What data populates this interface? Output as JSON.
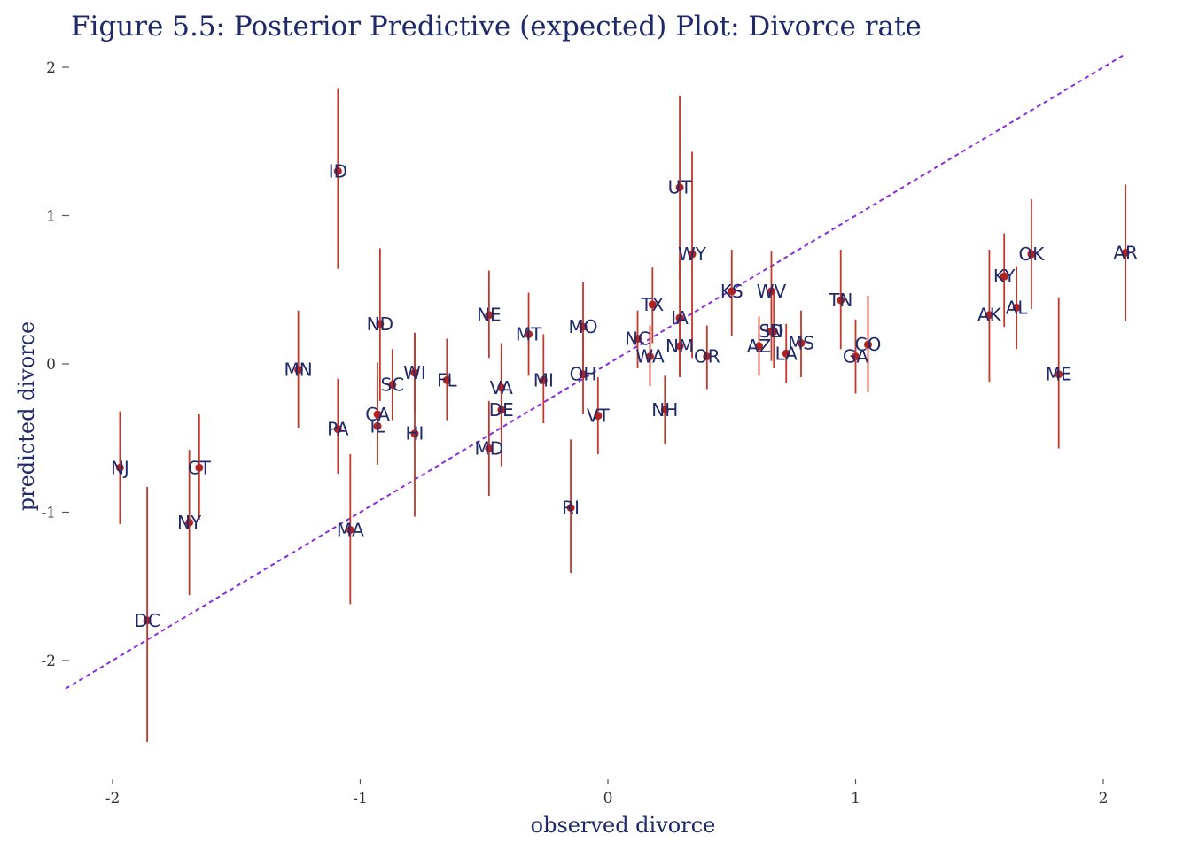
{
  "chart_data": {
    "type": "scatter",
    "title": "Figure 5.5: Posterior Predictive (expected) Plot: Divorce rate",
    "xlabel": "observed divorce",
    "ylabel": "predicted divorce",
    "xlim": [
      -2.2,
      2.15
    ],
    "ylim": [
      -2.7,
      2.15
    ],
    "x_ticks": [
      -2,
      -1,
      0,
      1,
      2
    ],
    "y_ticks": [
      -2,
      -1,
      0,
      1,
      2
    ],
    "x_tick_labels": [
      "-2",
      "-1",
      "0",
      "1",
      "2"
    ],
    "y_tick_labels": [
      "-2",
      "-1",
      "0",
      "1",
      "2"
    ],
    "grid": false,
    "reference_line": {
      "slope": 1,
      "intercept": 0,
      "style": "dashed",
      "color": "#8a2be2"
    },
    "colors": {
      "interval": "#c0392b",
      "point": "#b22222",
      "label": "#1f2a6b",
      "title": "#1f2a6b",
      "reference_line": "#8a2be2"
    },
    "points": [
      {
        "label": "AK",
        "x": 1.54,
        "y": 0.33,
        "lower": -0.12,
        "upper": 0.77
      },
      {
        "label": "AL",
        "x": 1.65,
        "y": 0.38,
        "lower": 0.1,
        "upper": 0.66
      },
      {
        "label": "AR",
        "x": 2.09,
        "y": 0.75,
        "lower": 0.29,
        "upper": 1.21
      },
      {
        "label": "AZ",
        "x": 0.61,
        "y": 0.12,
        "lower": -0.08,
        "upper": 0.32
      },
      {
        "label": "CA",
        "x": -0.93,
        "y": -0.34,
        "lower": -0.68,
        "upper": 0.01
      },
      {
        "label": "CO",
        "x": 1.05,
        "y": 0.13,
        "lower": -0.19,
        "upper": 0.46
      },
      {
        "label": "CT",
        "x": -1.65,
        "y": -0.7,
        "lower": -1.05,
        "upper": -0.34
      },
      {
        "label": "DC",
        "x": -1.86,
        "y": -1.73,
        "lower": -2.55,
        "upper": -0.83
      },
      {
        "label": "DE",
        "x": -0.43,
        "y": -0.31,
        "lower": -0.69,
        "upper": 0.07
      },
      {
        "label": "FL",
        "x": -0.65,
        "y": -0.11,
        "lower": -0.38,
        "upper": 0.17
      },
      {
        "label": "GA",
        "x": 1.0,
        "y": 0.05,
        "lower": -0.2,
        "upper": 0.3
      },
      {
        "label": "HI",
        "x": -0.78,
        "y": -0.47,
        "lower": -1.03,
        "upper": 0.21
      },
      {
        "label": "IA",
        "x": 0.29,
        "y": 0.31,
        "lower": -0.08,
        "upper": 0.7
      },
      {
        "label": "ID",
        "x": -1.09,
        "y": 1.3,
        "lower": 0.64,
        "upper": 1.86
      },
      {
        "label": "IL",
        "x": -0.93,
        "y": -0.42,
        "lower": -0.67,
        "upper": -0.16
      },
      {
        "label": "IN",
        "x": 0.67,
        "y": 0.22,
        "lower": -0.03,
        "upper": 0.47
      },
      {
        "label": "KS",
        "x": 0.5,
        "y": 0.49,
        "lower": 0.19,
        "upper": 0.77
      },
      {
        "label": "KY",
        "x": 1.6,
        "y": 0.59,
        "lower": 0.25,
        "upper": 0.88
      },
      {
        "label": "LA",
        "x": 0.72,
        "y": 0.07,
        "lower": -0.13,
        "upper": 0.27
      },
      {
        "label": "MA",
        "x": -1.04,
        "y": -1.12,
        "lower": -1.62,
        "upper": -0.61
      },
      {
        "label": "MD",
        "x": -0.48,
        "y": -0.57,
        "lower": -0.89,
        "upper": -0.25
      },
      {
        "label": "ME",
        "x": 1.82,
        "y": -0.07,
        "lower": -0.57,
        "upper": 0.45
      },
      {
        "label": "MI",
        "x": -0.26,
        "y": -0.11,
        "lower": -0.4,
        "upper": 0.2
      },
      {
        "label": "MN",
        "x": -1.25,
        "y": -0.04,
        "lower": -0.43,
        "upper": 0.36
      },
      {
        "label": "MO",
        "x": -0.1,
        "y": 0.25,
        "lower": -0.05,
        "upper": 0.55
      },
      {
        "label": "MS",
        "x": 0.78,
        "y": 0.14,
        "lower": -0.09,
        "upper": 0.36
      },
      {
        "label": "MT",
        "x": -0.32,
        "y": 0.2,
        "lower": -0.08,
        "upper": 0.48
      },
      {
        "label": "NC",
        "x": 0.12,
        "y": 0.17,
        "lower": -0.03,
        "upper": 0.36
      },
      {
        "label": "ND",
        "x": -0.92,
        "y": 0.27,
        "lower": -0.25,
        "upper": 0.78
      },
      {
        "label": "NE",
        "x": -0.48,
        "y": 0.33,
        "lower": 0.04,
        "upper": 0.63
      },
      {
        "label": "NH",
        "x": 0.23,
        "y": -0.31,
        "lower": -0.54,
        "upper": -0.08
      },
      {
        "label": "NJ",
        "x": -1.97,
        "y": -0.7,
        "lower": -1.08,
        "upper": -0.32
      },
      {
        "label": "NM",
        "x": 0.29,
        "y": 0.12,
        "lower": -0.09,
        "upper": 0.33
      },
      {
        "label": "NY",
        "x": -1.69,
        "y": -1.07,
        "lower": -1.56,
        "upper": -0.58
      },
      {
        "label": "OH",
        "x": -0.1,
        "y": -0.07,
        "lower": -0.34,
        "upper": 0.2
      },
      {
        "label": "OK",
        "x": 1.71,
        "y": 0.74,
        "lower": 0.37,
        "upper": 1.11
      },
      {
        "label": "OR",
        "x": 0.4,
        "y": 0.05,
        "lower": -0.17,
        "upper": 0.26
      },
      {
        "label": "PA",
        "x": -1.09,
        "y": -0.44,
        "lower": -0.74,
        "upper": -0.1
      },
      {
        "label": "RI",
        "x": -0.15,
        "y": -0.97,
        "lower": -1.41,
        "upper": -0.51
      },
      {
        "label": "SC",
        "x": -0.87,
        "y": -0.14,
        "lower": -0.38,
        "upper": 0.1
      },
      {
        "label": "SD",
        "x": 0.66,
        "y": 0.22,
        "lower": 0.02,
        "upper": 0.42
      },
      {
        "label": "TN",
        "x": 0.94,
        "y": 0.43,
        "lower": 0.1,
        "upper": 0.77
      },
      {
        "label": "TX",
        "x": 0.18,
        "y": 0.4,
        "lower": 0.14,
        "upper": 0.65
      },
      {
        "label": "UT",
        "x": 0.29,
        "y": 1.19,
        "lower": 0.57,
        "upper": 1.81
      },
      {
        "label": "VA",
        "x": -0.43,
        "y": -0.16,
        "lower": -0.45,
        "upper": 0.14
      },
      {
        "label": "VT",
        "x": -0.04,
        "y": -0.35,
        "lower": -0.61,
        "upper": -0.09
      },
      {
        "label": "WA",
        "x": 0.17,
        "y": 0.05,
        "lower": -0.15,
        "upper": 0.26
      },
      {
        "label": "WI",
        "x": -0.78,
        "y": -0.06,
        "lower": -0.33,
        "upper": 0.21
      },
      {
        "label": "WV",
        "x": 0.66,
        "y": 0.49,
        "lower": 0.22,
        "upper": 0.76
      },
      {
        "label": "WY",
        "x": 0.34,
        "y": 0.74,
        "lower": 0.04,
        "upper": 1.43
      }
    ]
  }
}
